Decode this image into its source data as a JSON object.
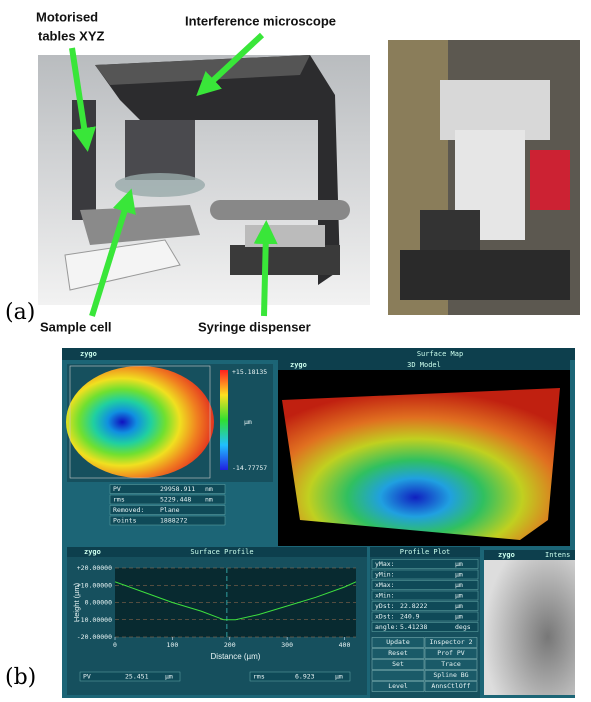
{
  "panel_a": {
    "label": "(a)",
    "annotations": {
      "motorised": [
        "Motorised",
        "tables XYZ"
      ],
      "microscope": "Interference microscope",
      "sample_cell": "Sample cell",
      "syringe": "Syringe dispenser"
    }
  },
  "panel_b": {
    "label": "(b)",
    "header": {
      "brand": "zygo",
      "title": "Surface Map"
    },
    "map": {
      "colorbar_max": "+15.18135",
      "colorbar_unit": "µm",
      "colorbar_min": "-14.77757",
      "stats": [
        [
          "PV",
          "29958.911",
          "nm"
        ],
        [
          "rms",
          "5229.448",
          "nm"
        ],
        [
          "Removed:",
          "Plane"
        ],
        [
          "Points",
          "1888272"
        ]
      ]
    },
    "model_3d": {
      "brand": "zygo",
      "title": "3D Model"
    },
    "surface_profile": {
      "brand": "zygo",
      "title": "Surface Profile",
      "chart": {
        "type": "line",
        "x_label": "Distance (µm)",
        "y_label": "Height (µm)",
        "x": [
          0,
          50,
          100,
          150,
          190,
          210,
          250,
          300,
          350,
          400,
          420
        ],
        "series": [
          {
            "color": "#3ee03e",
            "values": [
              12,
              6,
              0,
              -5,
              -10,
              -10,
              -7,
              -2,
              3,
              9,
              12
            ]
          }
        ],
        "xlim": [
          0,
          420
        ],
        "ylim": [
          -20,
          20
        ],
        "xticks": [
          0,
          100,
          200,
          300,
          400
        ],
        "yticks": [
          {
            "value": 20,
            "label": "+20.00000"
          },
          {
            "value": 10,
            "label": "+10.00000"
          },
          {
            "value": 0,
            "label": "0.00000"
          },
          {
            "value": -10,
            "label": "-10.00000"
          },
          {
            "value": -20,
            "label": "-20.00000"
          }
        ],
        "grid": true,
        "cursor_x": 195
      },
      "stats": [
        [
          "PV",
          "25.451",
          "µm"
        ],
        [
          "rms",
          "6.923",
          "µm"
        ]
      ]
    },
    "profile_plot": {
      "title": "Profile Plot",
      "rows": [
        {
          "label": "yMax:",
          "unit": "µm"
        },
        {
          "label": "yMin:",
          "unit": "µm"
        },
        {
          "label": "xMax:",
          "unit": "µm"
        },
        {
          "label": "xMin:",
          "unit": "µm"
        },
        {
          "label": "yDst:",
          "value": "22.8222",
          "unit": "µm"
        },
        {
          "label": "xDst:",
          "value": "240.9",
          "unit": "µm"
        },
        {
          "label": "angle:",
          "value": "5.41238",
          "unit": "degs"
        }
      ],
      "buttons": [
        {
          "left": "Update",
          "right": "Inspector 2"
        },
        {
          "left": "Reset",
          "right": "Prof PV"
        },
        {
          "left": "Set",
          "right": "Trace"
        },
        {
          "right": "Spline BG"
        },
        {
          "left": "Level",
          "right": "AnnsCtlOff"
        }
      ]
    },
    "intensity": {
      "brand": "zygo",
      "title": "Intens"
    }
  }
}
